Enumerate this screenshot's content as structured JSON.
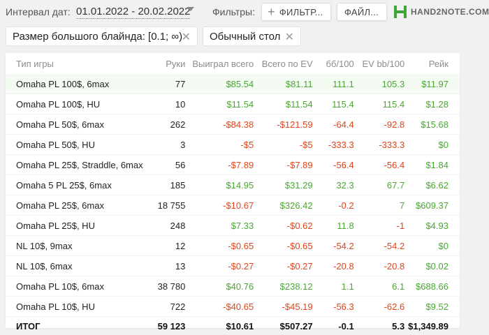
{
  "toolbar": {
    "interval_label": "Интервал дат:",
    "date_range": "01.01.2022 - 20.02.2022",
    "filters_label": "Фильтры:",
    "filters_button": "ФИЛЬТР...",
    "files_button": "ФАЙЛ...",
    "logo_text": "HAND2NOTE.COM"
  },
  "chips": [
    {
      "label": "Размер большого блайнда: [0.1; ∞)"
    },
    {
      "label": "Обычный стол"
    }
  ],
  "table": {
    "columns": [
      "Тип игры",
      "Руки",
      "Выиграл всего",
      "Всего по EV",
      "бб/100",
      "EV bb/100",
      "Рейк"
    ],
    "rows": [
      {
        "game": "Omaha PL 100$, 6max",
        "hands": "77",
        "won": "$85.54",
        "won_sign": "pos",
        "ev": "$81.11",
        "ev_sign": "pos",
        "bb100": "111.1",
        "bb_sign": "pos",
        "evbb": "105.3",
        "evbb_sign": "pos",
        "rake": "$11.97",
        "rake_sign": "pos"
      },
      {
        "game": "Omaha PL 100$, HU",
        "hands": "10",
        "won": "$11.54",
        "won_sign": "pos",
        "ev": "$11.54",
        "ev_sign": "pos",
        "bb100": "115.4",
        "bb_sign": "pos",
        "evbb": "115.4",
        "evbb_sign": "pos",
        "rake": "$1.28",
        "rake_sign": "pos"
      },
      {
        "game": "Omaha PL 50$, 6max",
        "hands": "262",
        "won": "-$84.38",
        "won_sign": "neg",
        "ev": "-$121.59",
        "ev_sign": "neg",
        "bb100": "-64.4",
        "bb_sign": "neg",
        "evbb": "-92.8",
        "evbb_sign": "neg",
        "rake": "$15.68",
        "rake_sign": "pos"
      },
      {
        "game": "Omaha PL 50$, HU",
        "hands": "3",
        "won": "-$5",
        "won_sign": "neg",
        "ev": "-$5",
        "ev_sign": "neg",
        "bb100": "-333.3",
        "bb_sign": "neg",
        "evbb": "-333.3",
        "evbb_sign": "neg",
        "rake": "$0",
        "rake_sign": "pos"
      },
      {
        "game": "Omaha PL 25$, Straddle, 6max",
        "hands": "56",
        "won": "-$7.89",
        "won_sign": "neg",
        "ev": "-$7.89",
        "ev_sign": "neg",
        "bb100": "-56.4",
        "bb_sign": "neg",
        "evbb": "-56.4",
        "evbb_sign": "neg",
        "rake": "$1.84",
        "rake_sign": "pos"
      },
      {
        "game": "Omaha 5 PL 25$, 6max",
        "hands": "185",
        "won": "$14.95",
        "won_sign": "pos",
        "ev": "$31.29",
        "ev_sign": "pos",
        "bb100": "32.3",
        "bb_sign": "pos",
        "evbb": "67.7",
        "evbb_sign": "pos",
        "rake": "$6.62",
        "rake_sign": "pos"
      },
      {
        "game": "Omaha PL 25$, 6max",
        "hands": "18 755",
        "won": "-$10.67",
        "won_sign": "neg",
        "ev": "$326.42",
        "ev_sign": "pos",
        "bb100": "-0.2",
        "bb_sign": "neg",
        "evbb": "7",
        "evbb_sign": "pos",
        "rake": "$609.37",
        "rake_sign": "pos"
      },
      {
        "game": "Omaha PL 25$, HU",
        "hands": "248",
        "won": "$7.33",
        "won_sign": "pos",
        "ev": "-$0.62",
        "ev_sign": "neg",
        "bb100": "11.8",
        "bb_sign": "pos",
        "evbb": "-1",
        "evbb_sign": "neg",
        "rake": "$4.93",
        "rake_sign": "pos"
      },
      {
        "game": "NL 10$, 9max",
        "hands": "12",
        "won": "-$0.65",
        "won_sign": "neg",
        "ev": "-$0.65",
        "ev_sign": "neg",
        "bb100": "-54.2",
        "bb_sign": "neg",
        "evbb": "-54.2",
        "evbb_sign": "neg",
        "rake": "$0",
        "rake_sign": "pos"
      },
      {
        "game": "NL 10$, 6max",
        "hands": "13",
        "won": "-$0.27",
        "won_sign": "neg",
        "ev": "-$0.27",
        "ev_sign": "neg",
        "bb100": "-20.8",
        "bb_sign": "neg",
        "evbb": "-20.8",
        "evbb_sign": "neg",
        "rake": "$0.02",
        "rake_sign": "pos"
      },
      {
        "game": "Omaha PL 10$, 6max",
        "hands": "38 780",
        "won": "$40.76",
        "won_sign": "pos",
        "ev": "$238.12",
        "ev_sign": "pos",
        "bb100": "1.1",
        "bb_sign": "pos",
        "evbb": "6.1",
        "evbb_sign": "pos",
        "rake": "$688.66",
        "rake_sign": "pos"
      },
      {
        "game": "Omaha PL 10$, HU",
        "hands": "722",
        "won": "-$40.65",
        "won_sign": "neg",
        "ev": "-$45.19",
        "ev_sign": "neg",
        "bb100": "-56.3",
        "bb_sign": "neg",
        "evbb": "-62.6",
        "evbb_sign": "neg",
        "rake": "$9.52",
        "rake_sign": "pos"
      }
    ],
    "total": {
      "game": "ИТОГ",
      "hands": "59 123",
      "won": "$10.61",
      "won_sign": "pos",
      "ev": "$507.27",
      "ev_sign": "pos",
      "bb100": "-0.1",
      "bb_sign": "neg",
      "evbb": "5.3",
      "evbb_sign": "pos",
      "rake": "$1,349.89",
      "rake_sign": "pos"
    }
  },
  "colors": {
    "positive": "#4aa632",
    "negative": "#e0451a",
    "logo_green": "#3fa535",
    "row_highlight": "#f3fbf3"
  }
}
